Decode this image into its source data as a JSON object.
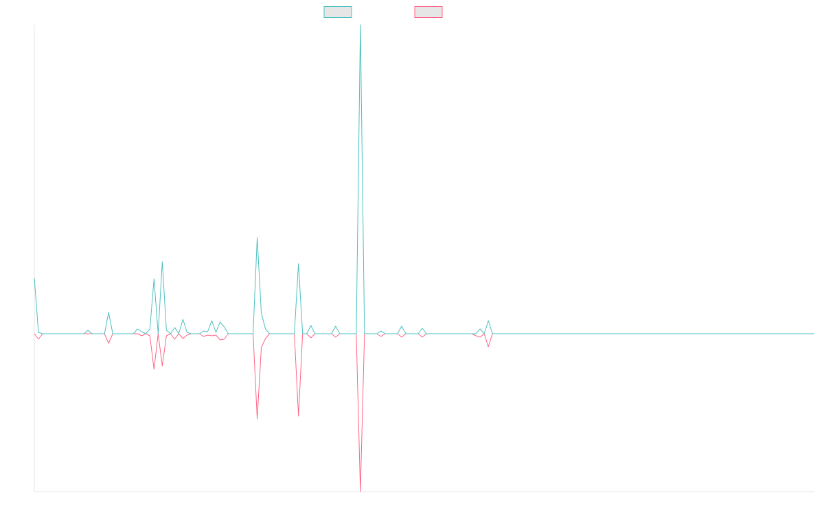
{
  "chart_data": {
    "type": "line",
    "categories": [
      null,
      null,
      null,
      null,
      null,
      null,
      null,
      null,
      null,
      null,
      null,
      null,
      null,
      null,
      null,
      null,
      null,
      null,
      null,
      null,
      null,
      null,
      null,
      null,
      null,
      null,
      null,
      null,
      null,
      null,
      null,
      null,
      null,
      null,
      null,
      null,
      null,
      null,
      null,
      null,
      null,
      null,
      null,
      null,
      null,
      null,
      null,
      null,
      null,
      null,
      null,
      null,
      null,
      null,
      null,
      null,
      null,
      null,
      null,
      null,
      null,
      null,
      null,
      null,
      null,
      null,
      null,
      null,
      null,
      null,
      null,
      null,
      null,
      null,
      null,
      null,
      null,
      null,
      null,
      null,
      null,
      null,
      null,
      null,
      null,
      null,
      null,
      null,
      null,
      null,
      null,
      null,
      null,
      null,
      null,
      null,
      null,
      null,
      null,
      null,
      null,
      null,
      null,
      null,
      null,
      null,
      null,
      null,
      null,
      null,
      null,
      null,
      null,
      null,
      null,
      null,
      null,
      null,
      null,
      null,
      null,
      null,
      null,
      null,
      null,
      null,
      null,
      null,
      null,
      null,
      null,
      null,
      null,
      null,
      null,
      null,
      null,
      null,
      null,
      null,
      null,
      null,
      null,
      null,
      null,
      null,
      null,
      null,
      null,
      null,
      null,
      null,
      null,
      null,
      null,
      null,
      null,
      null,
      null,
      null,
      null,
      null,
      null,
      null,
      null,
      null,
      null,
      null,
      null,
      null,
      null,
      null,
      null,
      null,
      null,
      null,
      null,
      null,
      null,
      null,
      null,
      null,
      null,
      null,
      null,
      null,
      null,
      null,
      null,
      null
    ],
    "series": [
      {
        "color": "#4bc0c0",
        "values": [
          81,
          2,
          0,
          0,
          0,
          0,
          0,
          0,
          0,
          0,
          0,
          0,
          0,
          5,
          0,
          0,
          0,
          0,
          31,
          0,
          0,
          0,
          0,
          0,
          0,
          7,
          3,
          0,
          7,
          80,
          0,
          105,
          5,
          0,
          9,
          0,
          21,
          2,
          0,
          0,
          0,
          4,
          3,
          19,
          2,
          17,
          10,
          0,
          0,
          0,
          0,
          0,
          0,
          0,
          140,
          30,
          7,
          0,
          0,
          0,
          0,
          0,
          0,
          0,
          102,
          0,
          0,
          12,
          0,
          0,
          0,
          0,
          0,
          11,
          0,
          0,
          0,
          0,
          0,
          450,
          0,
          0,
          0,
          0,
          4,
          0,
          0,
          0,
          0,
          11,
          0,
          0,
          0,
          0,
          8,
          0,
          0,
          0,
          0,
          0,
          0,
          0,
          0,
          0,
          0,
          0,
          0,
          0,
          7,
          0,
          19,
          0,
          0,
          0,
          0,
          0,
          0,
          0,
          0,
          0,
          0,
          0,
          0,
          0,
          0,
          0,
          0,
          0,
          0,
          0,
          0,
          0,
          0,
          0,
          0,
          0,
          0,
          0,
          0,
          0,
          0,
          0,
          0,
          0,
          0,
          0,
          0,
          0,
          0,
          0,
          0,
          0,
          0,
          0,
          0,
          0,
          0,
          0,
          0,
          0,
          0,
          0,
          0,
          0,
          0,
          0,
          0,
          0,
          0,
          0,
          0,
          0,
          0,
          0,
          0,
          0,
          0,
          0,
          0,
          0,
          0,
          0,
          0,
          0,
          0,
          0,
          0,
          0,
          0,
          0
        ]
      },
      {
        "color": "#ff6384",
        "values": [
          0,
          -8,
          0,
          0,
          0,
          0,
          0,
          0,
          0,
          0,
          0,
          0,
          0,
          0,
          0,
          0,
          0,
          0,
          -14,
          0,
          0,
          0,
          0,
          0,
          0,
          0,
          -3,
          0,
          -3,
          -52,
          0,
          -47,
          -3,
          0,
          -8,
          0,
          -7,
          -2,
          0,
          0,
          0,
          -4,
          -2,
          -3,
          -2,
          -9,
          -8,
          0,
          0,
          0,
          0,
          0,
          0,
          0,
          -124,
          -20,
          -7,
          0,
          0,
          0,
          0,
          0,
          0,
          0,
          -120,
          0,
          0,
          -6,
          0,
          0,
          0,
          0,
          0,
          -5,
          0,
          0,
          0,
          0,
          0,
          -230,
          0,
          0,
          0,
          0,
          -4,
          0,
          0,
          0,
          0,
          -5,
          0,
          0,
          0,
          0,
          -5,
          0,
          0,
          0,
          0,
          0,
          0,
          0,
          0,
          0,
          0,
          0,
          0,
          -3,
          -5,
          0,
          -19,
          0,
          0,
          0,
          0,
          0,
          0,
          0,
          0,
          0,
          0,
          0,
          0,
          0,
          0,
          0,
          0,
          0,
          0,
          0,
          0,
          0,
          0,
          0,
          0,
          0,
          0,
          0,
          0,
          0,
          0,
          0,
          0,
          0,
          0,
          0,
          0,
          0,
          0,
          0,
          0,
          0,
          0,
          0,
          0,
          0,
          0,
          0,
          0,
          0,
          0,
          0,
          0,
          0,
          0,
          0,
          0,
          0,
          0,
          0,
          0,
          0,
          0,
          0,
          0,
          0,
          0,
          0,
          0,
          0,
          0,
          0,
          0,
          0,
          0,
          0,
          0,
          0,
          0,
          0
        ]
      }
    ],
    "ylim": [
      -230,
      450
    ],
    "grid": false,
    "legend": "top"
  }
}
